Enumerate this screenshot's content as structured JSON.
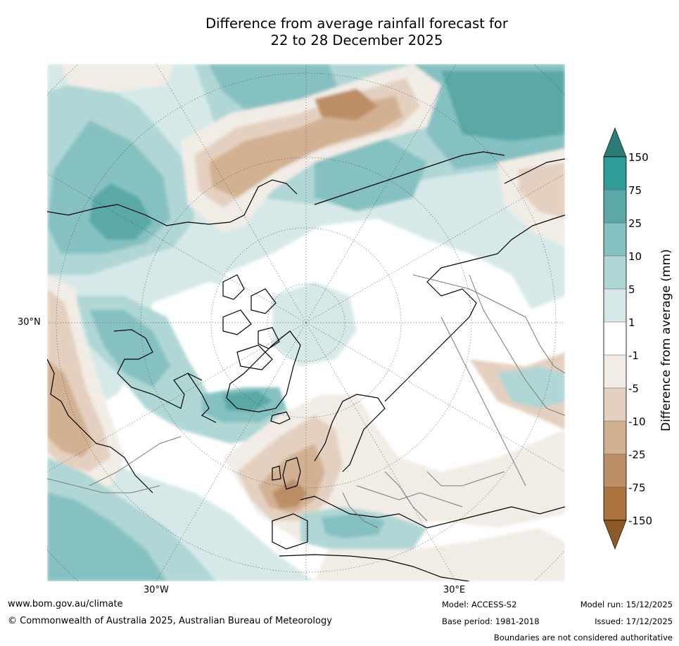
{
  "title": {
    "line1": "Difference from average rainfall forecast for",
    "line2": "22 to 28 December 2025"
  },
  "axis_labels": {
    "lat_30n": "30°N",
    "lon_30w": "30°W",
    "lon_30e": "30°E"
  },
  "colorbar": {
    "title": "Difference from average (mm)",
    "ticks": [
      "150",
      "75",
      "25",
      "10",
      "5",
      "1",
      "-1",
      "-5",
      "-10",
      "-25",
      "-75",
      "-150"
    ],
    "colors": {
      "over": "#2d7b76",
      "b75_150": "#2f9c98",
      "b25_75": "#5aa8a8",
      "b10_25": "#86c1c1",
      "b5_10": "#b0d6d6",
      "b1_5": "#d6e9e8",
      "bm1_1": "#ffffff",
      "bm5_m1": "#f2ece6",
      "bm10_m5": "#e4d0c0",
      "bm25_m10": "#d1b192",
      "bm75_m25": "#bd8e66",
      "bm150_m75": "#ac733f",
      "under": "#8c5a26"
    }
  },
  "footer": {
    "website": "www.bom.gov.au/climate",
    "copyright": "© Commonwealth of Australia 2025, Australian Bureau of Meteorology",
    "model": "Model: ACCESS-S2",
    "base_period": "Base period: 1981-2018",
    "model_run": "Model run: 15/12/2025",
    "issued": "Issued: 17/12/2025",
    "disclaimer": "Boundaries are not considered authoritative"
  }
}
